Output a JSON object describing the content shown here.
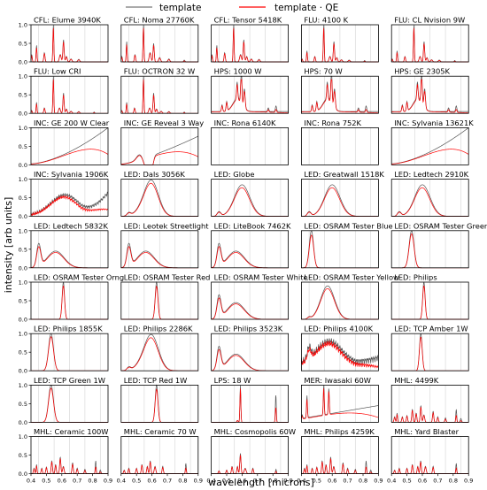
{
  "chart_data": {
    "type": "line",
    "legend": {
      "placement": "top-center",
      "entries": [
        {
          "name": "template",
          "color": "#000000"
        },
        {
          "name": "template · QE",
          "color": "#ff0000"
        }
      ]
    },
    "xlabel": "wavelength [microns]",
    "ylabel": "intensity [arb units]",
    "x_range": [
      0.4,
      0.9
    ],
    "y_range": [
      0.0,
      1.0
    ],
    "xticks": [
      "0.4",
      "0.5",
      "0.6",
      "0.7",
      "0.8",
      "0.9"
    ],
    "yticks": [
      "0.0",
      "0.5",
      "1.0"
    ],
    "grid": "vertical lines at 0.45, 0.55, 0.65, 0.75, 0.85",
    "panels": [
      {
        "title": "CFL: Elume 3940K",
        "shape": "cfl"
      },
      {
        "title": "CFL: Noma 27760K",
        "shape": "cfl2"
      },
      {
        "title": "CFL: Tensor 5418K",
        "shape": "cfl"
      },
      {
        "title": "FLU: 4100 K",
        "shape": "flu"
      },
      {
        "title": "FLU: CL Nvision 9W",
        "shape": "flu"
      },
      {
        "title": "FLU: Low CRI",
        "shape": "flu"
      },
      {
        "title": "FLU: OCTRON 32 W",
        "shape": "flu"
      },
      {
        "title": "HPS: 1000 W",
        "shape": "hps"
      },
      {
        "title": "HPS: 70 W",
        "shape": "hps"
      },
      {
        "title": "HPS: GE 2305K",
        "shape": "hps"
      },
      {
        "title": "INC: GE 200 W Clear",
        "shape": "inc"
      },
      {
        "title": "INC: GE Reveal 3 Way",
        "shape": "reveal"
      },
      {
        "title": "INC: Rona 6140K",
        "shape": "incsteep"
      },
      {
        "title": "INC: Rona 752K",
        "shape": "incsteep"
      },
      {
        "title": "INC: Sylvania 13621K",
        "shape": "inc"
      },
      {
        "title": "INC: Sylvania 1906K",
        "shape": "incbump"
      },
      {
        "title": "LED: Dals 3056K",
        "shape": "ledwarm"
      },
      {
        "title": "LED: Globe",
        "shape": "ledgreen"
      },
      {
        "title": "LED: Greatwall 1518K",
        "shape": "ledgreen"
      },
      {
        "title": "LED: Ledtech 2910K",
        "shape": "ledgreen"
      },
      {
        "title": "LED: Ledtech 5832K",
        "shape": "ledcool"
      },
      {
        "title": "LED: Leotek Streetlight",
        "shape": "ledcool"
      },
      {
        "title": "LED: LiteBook 7462K",
        "shape": "ledcool"
      },
      {
        "title": "LED: OSRAM Tester Blue",
        "shape": "blue"
      },
      {
        "title": "LED: OSRAM Tester Green",
        "shape": "green"
      },
      {
        "title": "LED: OSRAM Tester Orng",
        "shape": "orange"
      },
      {
        "title": "LED: OSRAM Tester Red",
        "shape": "red"
      },
      {
        "title": "LED: OSRAM Tester White",
        "shape": "ledcool"
      },
      {
        "title": "LED: OSRAM Tester Yellow",
        "shape": "yellow"
      },
      {
        "title": "LED: Philips",
        "shape": "orange"
      },
      {
        "title": "LED: Philips 1855K",
        "shape": "green"
      },
      {
        "title": "LED: Philips 2286K",
        "shape": "ledwarm"
      },
      {
        "title": "LED: Philips 3523K",
        "shape": "ledcool"
      },
      {
        "title": "LED: Philips 4100K",
        "shape": "noisy"
      },
      {
        "title": "LED: TCP Amber 1W",
        "shape": "amber"
      },
      {
        "title": "LED: TCP Green 1W",
        "shape": "green"
      },
      {
        "title": "LED: TCP Red 1W",
        "shape": "red"
      },
      {
        "title": "LPS: 18 W",
        "shape": "lps"
      },
      {
        "title": "MER: Iwasaki 60W",
        "shape": "mer"
      },
      {
        "title": "MHL: 4499K",
        "shape": "mhl"
      },
      {
        "title": "MHL: Ceramic 100W",
        "shape": "mhl"
      },
      {
        "title": "MHL: Ceramic 70 W",
        "shape": "mhl2"
      },
      {
        "title": "MHL: Cosmopolis 60W",
        "shape": "mhl3"
      },
      {
        "title": "MHL: Philips 4259K",
        "shape": "mhl"
      },
      {
        "title": "MHL: Yard Blaster",
        "shape": "mhl2"
      }
    ]
  }
}
